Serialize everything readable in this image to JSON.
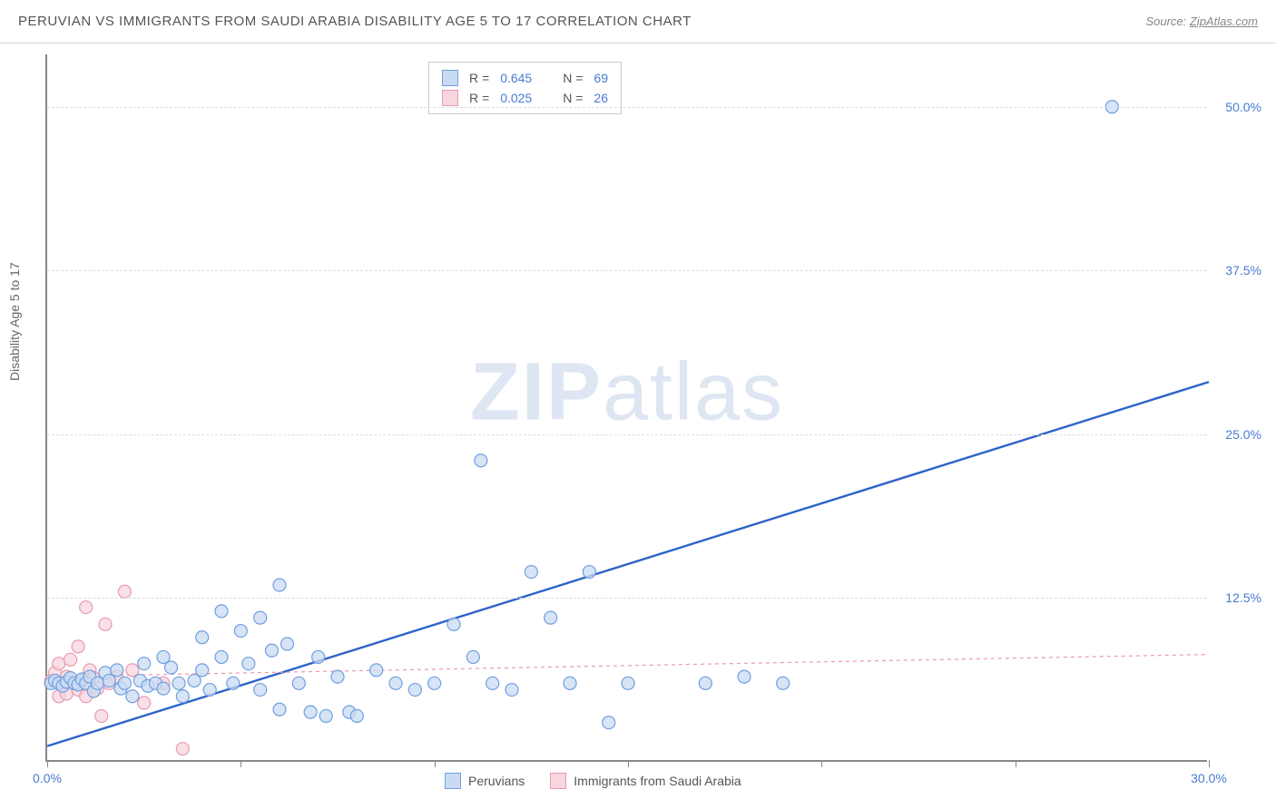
{
  "header": {
    "title": "PERUVIAN VS IMMIGRANTS FROM SAUDI ARABIA DISABILITY AGE 5 TO 17 CORRELATION CHART",
    "source_prefix": "Source: ",
    "source_link": "ZipAtlas.com"
  },
  "chart": {
    "type": "scatter",
    "y_axis_label": "Disability Age 5 to 17",
    "watermark": {
      "bold": "ZIP",
      "light": "atlas"
    },
    "xlim": [
      0,
      30
    ],
    "ylim": [
      0,
      54
    ],
    "x_ticks": [
      0,
      5,
      10,
      15,
      20,
      25,
      30
    ],
    "x_tick_labels": {
      "0": "0.0%",
      "30": "30.0%"
    },
    "y_ticks": [
      12.5,
      25.0,
      37.5,
      50.0
    ],
    "y_tick_labels": [
      "12.5%",
      "25.0%",
      "37.5%",
      "50.0%"
    ],
    "background_color": "#ffffff",
    "grid_color": "#dddddd",
    "axis_color": "#888888",
    "marker_radius": 7,
    "marker_stroke_width": 1.2,
    "series": [
      {
        "name": "Peruvians",
        "color_fill": "#c9dbf3",
        "color_stroke": "#6f9fe0",
        "r": "0.645",
        "n": "69",
        "trend": {
          "x1": 0,
          "y1": 1.2,
          "x2": 30,
          "y2": 29.0,
          "width": 2.4,
          "dash": "none",
          "color": "#2d63c8"
        },
        "points": [
          [
            0.1,
            6.0
          ],
          [
            0.2,
            6.2
          ],
          [
            0.3,
            6.0
          ],
          [
            0.4,
            5.8
          ],
          [
            0.5,
            6.1
          ],
          [
            0.6,
            6.4
          ],
          [
            0.7,
            6.0
          ],
          [
            0.8,
            5.9
          ],
          [
            0.9,
            6.3
          ],
          [
            1.0,
            6.0
          ],
          [
            1.1,
            6.5
          ],
          [
            1.2,
            5.4
          ],
          [
            1.3,
            6.0
          ],
          [
            1.5,
            6.8
          ],
          [
            1.6,
            6.2
          ],
          [
            1.8,
            7.0
          ],
          [
            1.9,
            5.6
          ],
          [
            2.0,
            6.0
          ],
          [
            2.2,
            5.0
          ],
          [
            2.4,
            6.2
          ],
          [
            2.5,
            7.5
          ],
          [
            2.6,
            5.8
          ],
          [
            2.8,
            6.0
          ],
          [
            3.0,
            8.0
          ],
          [
            3.0,
            5.6
          ],
          [
            3.2,
            7.2
          ],
          [
            3.4,
            6.0
          ],
          [
            3.5,
            5.0
          ],
          [
            3.8,
            6.2
          ],
          [
            4.0,
            9.5
          ],
          [
            4.0,
            7.0
          ],
          [
            4.2,
            5.5
          ],
          [
            4.5,
            11.5
          ],
          [
            4.5,
            8.0
          ],
          [
            4.8,
            6.0
          ],
          [
            5.0,
            10.0
          ],
          [
            5.2,
            7.5
          ],
          [
            5.5,
            11.0
          ],
          [
            5.5,
            5.5
          ],
          [
            5.8,
            8.5
          ],
          [
            6.0,
            13.5
          ],
          [
            6.0,
            4.0
          ],
          [
            6.2,
            9.0
          ],
          [
            6.5,
            6.0
          ],
          [
            6.8,
            3.8
          ],
          [
            7.0,
            8.0
          ],
          [
            7.2,
            3.5
          ],
          [
            7.5,
            6.5
          ],
          [
            7.8,
            3.8
          ],
          [
            8.0,
            3.5
          ],
          [
            8.5,
            7.0
          ],
          [
            9.0,
            6.0
          ],
          [
            9.5,
            5.5
          ],
          [
            10.0,
            6.0
          ],
          [
            10.5,
            10.5
          ],
          [
            11.0,
            8.0
          ],
          [
            11.2,
            23.0
          ],
          [
            11.5,
            6.0
          ],
          [
            12.0,
            5.5
          ],
          [
            12.5,
            14.5
          ],
          [
            13.0,
            11.0
          ],
          [
            13.5,
            6.0
          ],
          [
            14.0,
            14.5
          ],
          [
            14.5,
            3.0
          ],
          [
            15.0,
            6.0
          ],
          [
            17.0,
            6.0
          ],
          [
            18.0,
            6.5
          ],
          [
            19.0,
            6.0
          ],
          [
            27.5,
            50.0
          ]
        ]
      },
      {
        "name": "Immigrants from Saudi Arabia",
        "color_fill": "#f7d6de",
        "color_stroke": "#e89ab0",
        "r": "0.025",
        "n": "26",
        "trend": {
          "x1": 0,
          "y1": 6.5,
          "x2": 30,
          "y2": 8.2,
          "width": 1.2,
          "dash": "4,4",
          "color": "#e89ab0"
        },
        "points": [
          [
            0.1,
            6.2
          ],
          [
            0.2,
            6.8
          ],
          [
            0.3,
            5.0
          ],
          [
            0.3,
            7.5
          ],
          [
            0.4,
            6.0
          ],
          [
            0.5,
            6.5
          ],
          [
            0.5,
            5.2
          ],
          [
            0.6,
            7.8
          ],
          [
            0.7,
            6.0
          ],
          [
            0.8,
            5.5
          ],
          [
            0.8,
            8.8
          ],
          [
            0.9,
            6.2
          ],
          [
            1.0,
            5.0
          ],
          [
            1.0,
            11.8
          ],
          [
            1.1,
            7.0
          ],
          [
            1.2,
            6.4
          ],
          [
            1.3,
            5.6
          ],
          [
            1.4,
            3.5
          ],
          [
            1.5,
            10.5
          ],
          [
            1.6,
            6.0
          ],
          [
            1.8,
            6.5
          ],
          [
            2.0,
            13.0
          ],
          [
            2.2,
            7.0
          ],
          [
            2.5,
            4.5
          ],
          [
            3.0,
            6.0
          ],
          [
            3.5,
            1.0
          ]
        ]
      }
    ],
    "legend_top": {
      "r_label": "R =",
      "n_label": "N ="
    },
    "legend_bottom": [
      {
        "label": "Peruvians",
        "fill": "#c9dbf3",
        "stroke": "#6f9fe0"
      },
      {
        "label": "Immigrants from Saudi Arabia",
        "fill": "#f7d6de",
        "stroke": "#e89ab0"
      }
    ]
  }
}
